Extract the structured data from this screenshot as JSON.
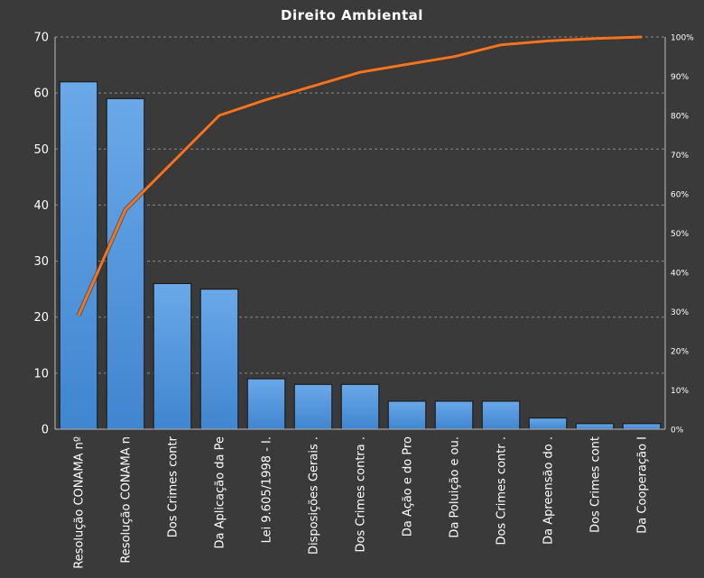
{
  "chart_data": {
    "type": "bar",
    "title": "Direito  Ambiental",
    "categories": [
      "Resolução CONAMA nº",
      "Resolução CONAMA n",
      "Dos Crimes contr",
      "Da Aplicação da Pe",
      "Lei 9.605/1998 - I.",
      "Disposições Gerais .",
      "Dos Crimes contra .",
      "Da Ação e do Pro",
      "Da Poluição e ou.",
      "Dos Crimes contr .",
      "Da Apreensão do .",
      "Dos Crimes cont",
      "Da Cooperação I"
    ],
    "series": [
      {
        "type": "bar",
        "values": [
          62,
          59,
          26,
          25,
          9,
          8,
          8,
          5,
          5,
          5,
          2,
          1,
          1
        ]
      },
      {
        "type": "line",
        "axis": "secondary",
        "values": [
          29,
          56,
          68,
          80,
          84,
          87.5,
          91,
          93,
          95,
          98,
          99,
          99.6,
          100
        ]
      }
    ],
    "ylim": [
      0,
      70
    ],
    "yticks": [
      "0",
      "10",
      "20",
      "30",
      "40",
      "50",
      "60",
      "70"
    ],
    "y2lim": [
      0,
      100
    ],
    "y2ticks": [
      "0%",
      "10%",
      "20%",
      "30%",
      "40%",
      "50%",
      "60%",
      "70%",
      "80%",
      "90%",
      "100%"
    ],
    "grid": "horizontal dashed",
    "legend": "none",
    "colors": {
      "background": "#3a3a3a",
      "bar": "#4a8fd6",
      "line": "#e8762b",
      "grid": "#8a8a8a",
      "text": "#ffffff"
    }
  }
}
